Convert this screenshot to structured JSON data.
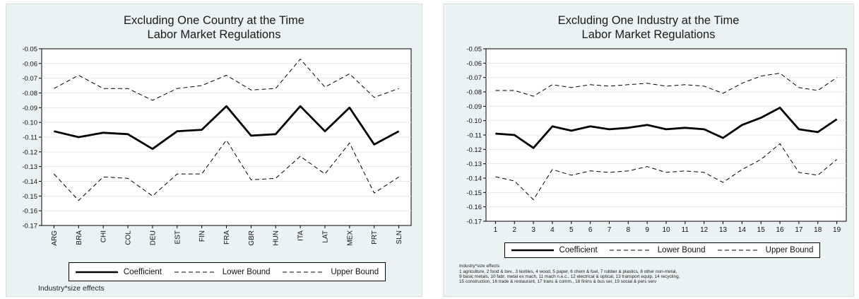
{
  "chart_data": [
    {
      "type": "line",
      "title": "Excluding One Country at the Time",
      "subtitle": "Labor Market Regulations",
      "categories": [
        "ARG",
        "BRA",
        "CHI",
        "COL",
        "DEU",
        "EST",
        "FIN",
        "FRA",
        "GBR",
        "HUN",
        "ITA",
        "LAT",
        "MEX",
        "PRT",
        "SLN"
      ],
      "ylim": [
        -0.17,
        -0.05
      ],
      "yticks": [
        "-0.05",
        "-0.06",
        "-0.07",
        "-0.08",
        "-0.09",
        "-0.10",
        "-0.11",
        "-0.12",
        "-0.13",
        "-0.14",
        "-0.15",
        "-0.16",
        "-0.17"
      ],
      "series": [
        {
          "name": "Coefficient",
          "style": "solid-thick",
          "values": [
            -0.106,
            -0.11,
            -0.107,
            -0.108,
            -0.118,
            -0.106,
            -0.105,
            -0.089,
            -0.109,
            -0.108,
            -0.089,
            -0.106,
            -0.09,
            -0.115,
            -0.106
          ]
        },
        {
          "name": "Lower Bound",
          "style": "dashed",
          "values": [
            -0.135,
            -0.153,
            -0.137,
            -0.138,
            -0.15,
            -0.135,
            -0.135,
            -0.112,
            -0.139,
            -0.138,
            -0.123,
            -0.135,
            -0.114,
            -0.148,
            -0.137
          ]
        },
        {
          "name": "Upper Bound",
          "style": "dashed",
          "values": [
            -0.077,
            -0.068,
            -0.077,
            -0.077,
            -0.085,
            -0.077,
            -0.075,
            -0.068,
            -0.078,
            -0.077,
            -0.057,
            -0.076,
            -0.067,
            -0.083,
            -0.077
          ]
        }
      ],
      "grid": true,
      "legend": "bottom",
      "note": "Industry*size effects"
    },
    {
      "type": "line",
      "title": "Excluding One Industry at the Time",
      "subtitle": "Labor Market Regulations",
      "categories": [
        "1",
        "2",
        "3",
        "4",
        "5",
        "6",
        "7",
        "8",
        "9",
        "10",
        "11",
        "12",
        "13",
        "14",
        "15",
        "16",
        "17",
        "18",
        "19"
      ],
      "ylim": [
        -0.17,
        -0.05
      ],
      "yticks": [
        "-0.05",
        "-0.06",
        "-0.07",
        "-0.08",
        "-0.09",
        "-0.10",
        "-0.11",
        "-0.12",
        "-0.13",
        "-0.14",
        "-0.15",
        "-0.16",
        "-0.17"
      ],
      "series": [
        {
          "name": "Coefficient",
          "style": "solid-thick",
          "values": [
            -0.109,
            -0.11,
            -0.119,
            -0.104,
            -0.107,
            -0.104,
            -0.106,
            -0.105,
            -0.103,
            -0.106,
            -0.105,
            -0.106,
            -0.112,
            -0.103,
            -0.098,
            -0.091,
            -0.106,
            -0.108,
            -0.099
          ]
        },
        {
          "name": "Lower Bound",
          "style": "dashed",
          "values": [
            -0.139,
            -0.142,
            -0.155,
            -0.134,
            -0.138,
            -0.135,
            -0.136,
            -0.135,
            -0.132,
            -0.136,
            -0.135,
            -0.136,
            -0.143,
            -0.134,
            -0.127,
            -0.116,
            -0.136,
            -0.138,
            -0.127
          ]
        },
        {
          "name": "Upper Bound",
          "style": "dashed",
          "values": [
            -0.079,
            -0.079,
            -0.083,
            -0.075,
            -0.077,
            -0.075,
            -0.076,
            -0.075,
            -0.074,
            -0.076,
            -0.075,
            -0.076,
            -0.081,
            -0.074,
            -0.069,
            -0.067,
            -0.077,
            -0.079,
            -0.07
          ]
        }
      ],
      "grid": true,
      "legend": "bottom",
      "note_title": "Industry*size effects",
      "note_lines": [
        "1 agriculture, 2 food & bev., 3 textiles, 4 wood, 5 paper, 6 chem & fuel, 7 rubber & plastics, 8 other non-metal,",
        "9 basic metals, 10 fabr. metal ex mach, 11 mach n.e.c., 12 electrical & optical, 13 transport equip, 14 recycling,",
        "15 construction, 16 trade & restaurant, 17 trans & comm., 18 finins & bus ser, 19 social & pers serv"
      ]
    }
  ]
}
